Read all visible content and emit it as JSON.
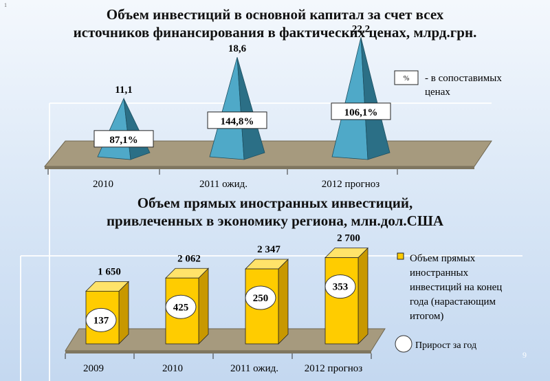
{
  "corner_mark": "1",
  "page_number": "9",
  "charts": [
    {
      "title_line1": "Объем инвестиций в основной капитал за счет всех",
      "title_line2": "источников финансирования в фактических ценах, млрд.грн.",
      "legend_box": "%",
      "legend_text_line1": "- в сопоставимых",
      "legend_text_line2": "ценах"
    },
    {
      "title_line1": "Объем прямых иностранных инвестиций,",
      "title_line2": "привлеченных в экономику региона, млн.дол.США",
      "legend_bar_lines": [
        "Объем прямых",
        "иностранных",
        "инвестиций на конец",
        "года (нарастающим",
        "итогом)"
      ],
      "legend_circle": "Прирост за год"
    }
  ],
  "chart_data": [
    {
      "type": "bar",
      "mark": "pyramid",
      "categories": [
        "2010",
        "2011 ожид.",
        "2012 прогноз"
      ],
      "values": [
        11.1,
        18.6,
        22.2
      ],
      "value_labels": [
        "11,1",
        "18,6",
        "22,2"
      ],
      "percent_labels": [
        "87,1%",
        "144,8%",
        "106,1%"
      ],
      "colors": {
        "face": "#4fa9c8",
        "side": "#2b6f86",
        "floor": "#a69a7e"
      }
    },
    {
      "type": "bar",
      "mark": "3d-column",
      "categories": [
        "2009",
        "2010",
        "2011 ожид.",
        "2012 прогноз"
      ],
      "values": [
        1650,
        2062,
        2347,
        2700
      ],
      "value_labels": [
        "1 650",
        "2 062",
        "2 347",
        "2 700"
      ],
      "growth_labels": [
        "137",
        "425",
        "250",
        "353"
      ],
      "colors": {
        "front": "#ffcc00",
        "side": "#c89800",
        "top": "#ffe36a",
        "floor": "#a69a7e"
      }
    }
  ]
}
